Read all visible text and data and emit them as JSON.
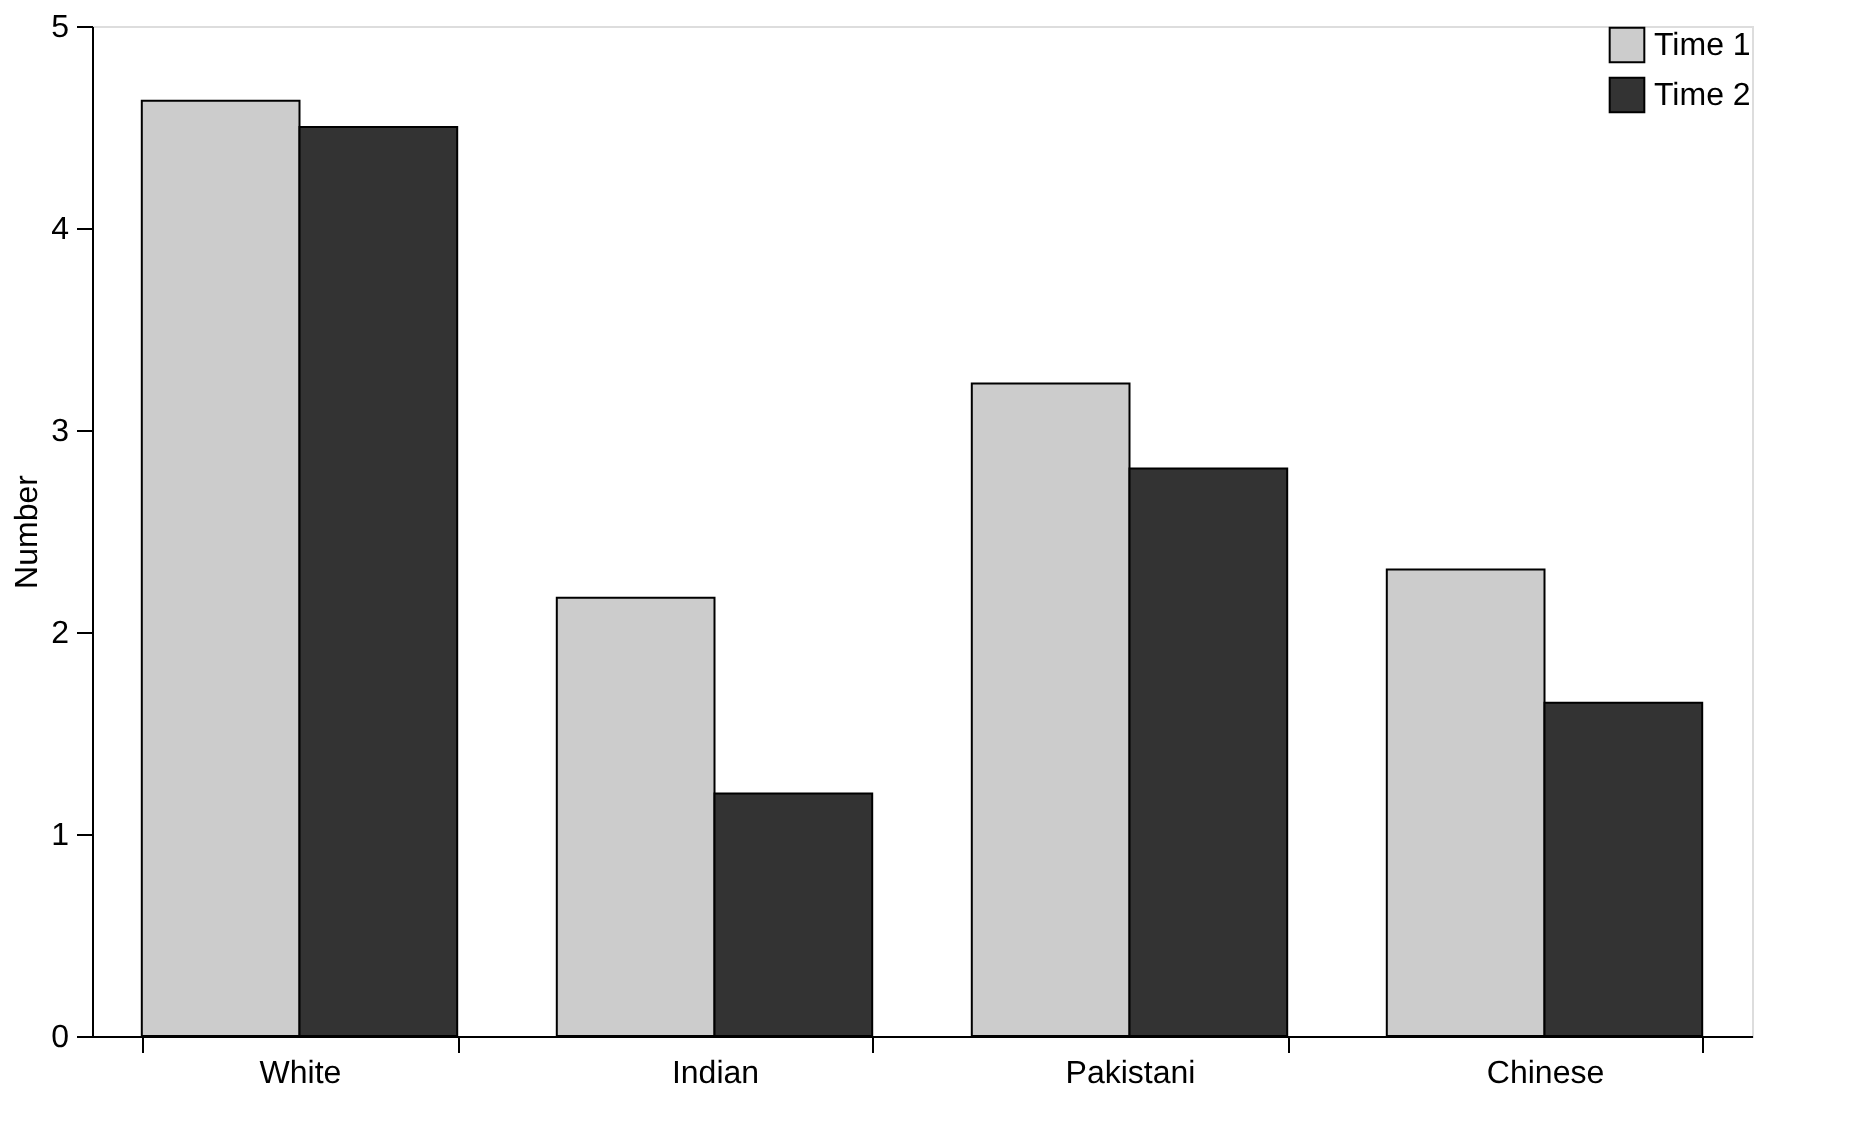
{
  "chart_data": {
    "type": "bar",
    "ylabel": "Number",
    "categories": [
      "White",
      "Indian",
      "Pakistani",
      "Chinese"
    ],
    "series": [
      {
        "name": "Time 1",
        "color": "#cccccc",
        "values": [
          4.63,
          2.17,
          3.23,
          2.31
        ]
      },
      {
        "name": "Time 2",
        "color": "#333333",
        "values": [
          4.5,
          1.2,
          2.81,
          1.65
        ]
      }
    ],
    "ylim": [
      0,
      5
    ],
    "yticks": [
      0,
      1,
      2,
      3,
      4,
      5
    ],
    "grid": false,
    "legend": "top right"
  }
}
